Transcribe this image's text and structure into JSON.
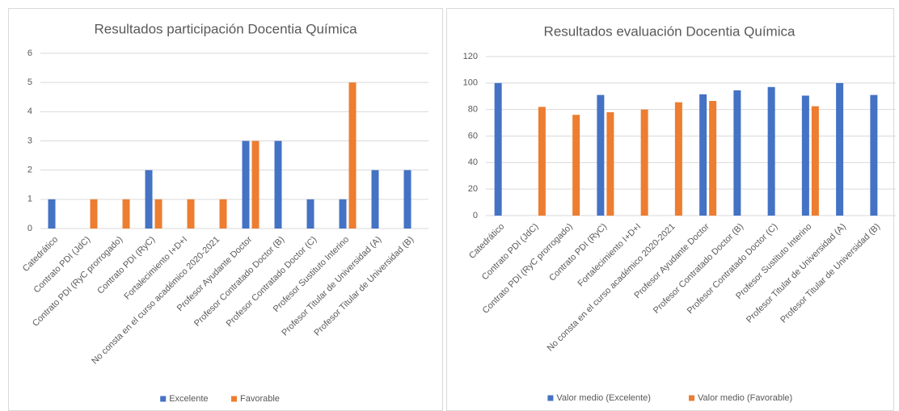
{
  "chart_data": [
    {
      "type": "bar",
      "title": "Resultados participación Docentia Química",
      "categories": [
        "Catedrático",
        "Contrato PDI (JdC)",
        "Contrato PDI (RyC prorrogado)",
        "Contrato PDI (RyC)",
        "Fortalecimiento I+D+I",
        "No consta en el curso académico 2020-2021",
        "Profesor Ayudante Doctor",
        "Profesor Contratado Doctor (B)",
        "Profesor Contratado Doctor (C)",
        "Profesor Sustituto Interino",
        "Profesor Titular de Universidad (A)",
        "Profesor Titular de Universidad (B)"
      ],
      "series": [
        {
          "name": "Excelente",
          "color": "#4472c4",
          "values": [
            1,
            0,
            0,
            2,
            0,
            0,
            3,
            3,
            1,
            1,
            2,
            2
          ]
        },
        {
          "name": "Favorable",
          "color": "#ed7d31",
          "values": [
            0,
            1,
            1,
            1,
            1,
            1,
            3,
            0,
            0,
            5,
            0,
            0
          ]
        }
      ],
      "ylim": [
        0,
        6
      ],
      "yticks": [
        0,
        1,
        2,
        3,
        4,
        5,
        6
      ],
      "grid": true,
      "legend": "bottom"
    },
    {
      "type": "bar",
      "title": "Resultados evaluación Docentia Química",
      "categories": [
        "Catedrático",
        "Contrato PDI (JdC)",
        "Contrato PDI (RyC prorrogado)",
        "Contrato PDI (RyC)",
        "Fortalecimiento I+D+I",
        "No consta en el curso académico 2020-2021",
        "Profesor Ayudante Doctor",
        "Profesor Contratado Doctor (B)",
        "Profesor Contratado Doctor (C)",
        "Profesor Sustituto Interino",
        "Profesor Titular de Universidad (A)",
        "Profesor Titular de Universidad (B)"
      ],
      "series": [
        {
          "name": "Valor medio (Excelente)",
          "color": "#4472c4",
          "values": [
            100,
            null,
            null,
            91,
            null,
            null,
            91.5,
            94.5,
            97,
            90.5,
            100,
            91
          ]
        },
        {
          "name": "Valor medio (Favorable)",
          "color": "#ed7d31",
          "values": [
            null,
            82,
            76,
            78,
            80,
            85.5,
            86.5,
            null,
            null,
            82.5,
            null,
            null
          ]
        }
      ],
      "ylim": [
        0,
        120
      ],
      "yticks": [
        0,
        20,
        40,
        60,
        80,
        100,
        120
      ],
      "grid": true,
      "legend": "bottom"
    }
  ]
}
